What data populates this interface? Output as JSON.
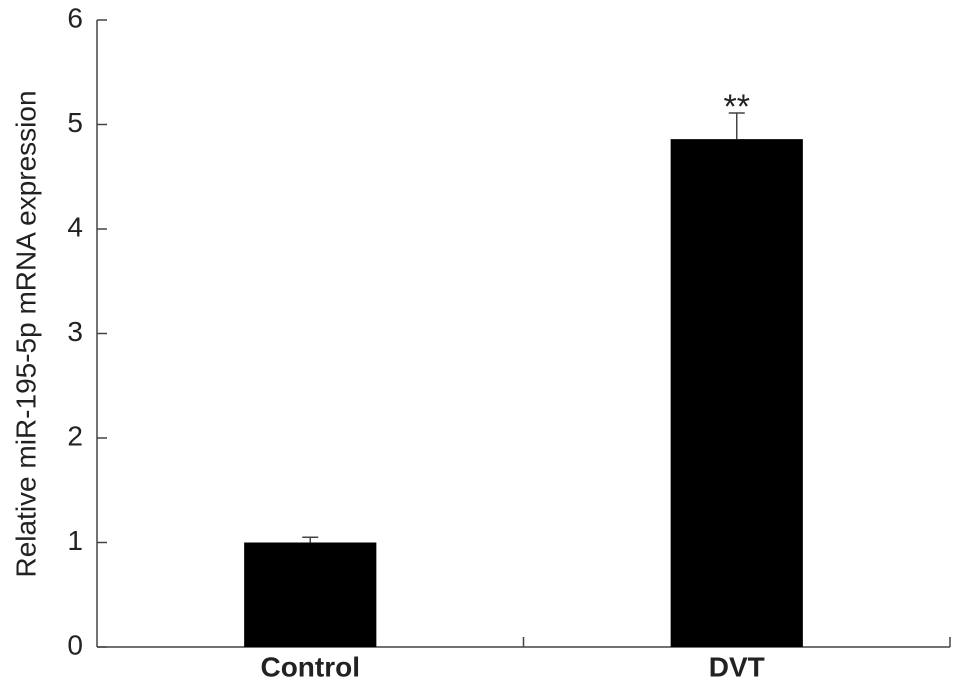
{
  "chart_data": {
    "type": "bar",
    "ylabel": "Relative miR-195-5p mRNA expression",
    "categories": [
      "Control",
      "DVT"
    ],
    "values": [
      1.0,
      4.86
    ],
    "errors": [
      0.05,
      0.25
    ],
    "significance": [
      null,
      "**"
    ],
    "color": "#000000",
    "ylim": [
      0,
      6
    ],
    "yticks": [
      0,
      1,
      2,
      3,
      4,
      5,
      6
    ]
  }
}
